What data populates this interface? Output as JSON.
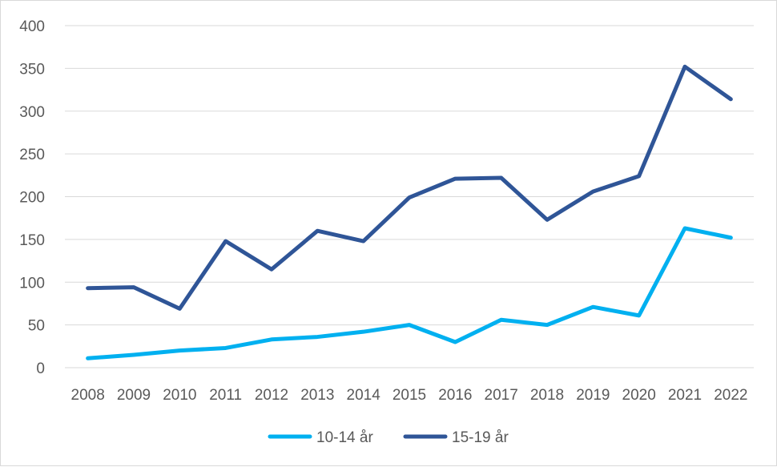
{
  "chart_data": {
    "type": "line",
    "title": "",
    "xlabel": "",
    "ylabel": "",
    "categories": [
      "2008",
      "2009",
      "2010",
      "2011",
      "2012",
      "2013",
      "2014",
      "2015",
      "2016",
      "2017",
      "2018",
      "2019",
      "2020",
      "2021",
      "2022"
    ],
    "ylim": [
      0,
      400
    ],
    "yticks": [
      "0",
      "50",
      "100",
      "150",
      "200",
      "250",
      "300",
      "350",
      "400"
    ],
    "grid": true,
    "legend_position": "bottom",
    "series": [
      {
        "name": "10-14 år",
        "color": "#00b0f0",
        "values": [
          11,
          15,
          20,
          23,
          33,
          36,
          42,
          50,
          30,
          56,
          50,
          71,
          61,
          163,
          152
        ]
      },
      {
        "name": "15-19 år",
        "color": "#2f5597",
        "values": [
          93,
          94,
          69,
          148,
          115,
          160,
          148,
          199,
          221,
          222,
          173,
          206,
          224,
          352,
          314
        ]
      }
    ]
  }
}
